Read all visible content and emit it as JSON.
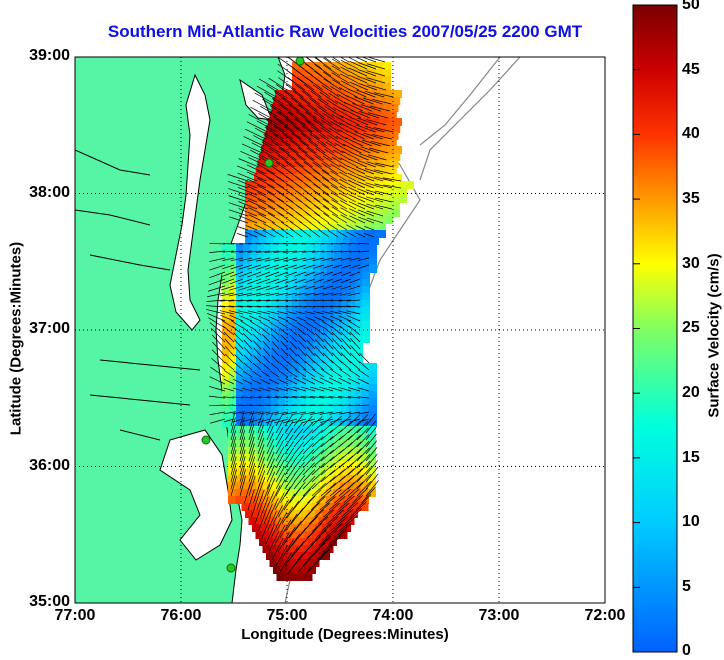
{
  "title": "Southern Mid-Atlantic Raw Velocities 2007/05/25 2200 GMT",
  "x_axis": {
    "label": "Longitude (Degrees:Minutes)",
    "ticks": [
      "77:00",
      "76:00",
      "75:00",
      "74:00",
      "73:00",
      "72:00"
    ]
  },
  "y_axis": {
    "label": "Latitude (Degrees:Minutes)",
    "ticks": [
      "39:00",
      "38:00",
      "37:00",
      "36:00",
      "35:00"
    ]
  },
  "colorbar": {
    "label": "Surface Velocity (cm/s)",
    "ticks": [
      "50",
      "45",
      "40",
      "35",
      "30",
      "25",
      "20",
      "15",
      "10",
      "5",
      "0"
    ],
    "range": [
      0,
      50
    ],
    "colormap": "jet"
  },
  "colors": {
    "land": "#55f5a5",
    "water": "#ffffff",
    "title": "#1010e0",
    "coastline": "#000000",
    "bathymetry": "#888888",
    "gridlines": "#000000",
    "radar_sites": "#22cc22"
  },
  "map": {
    "extent": {
      "lon": [
        -77,
        -72
      ],
      "lat": [
        35,
        39
      ]
    },
    "grid": "dotted",
    "radar_site_count": 4
  }
}
